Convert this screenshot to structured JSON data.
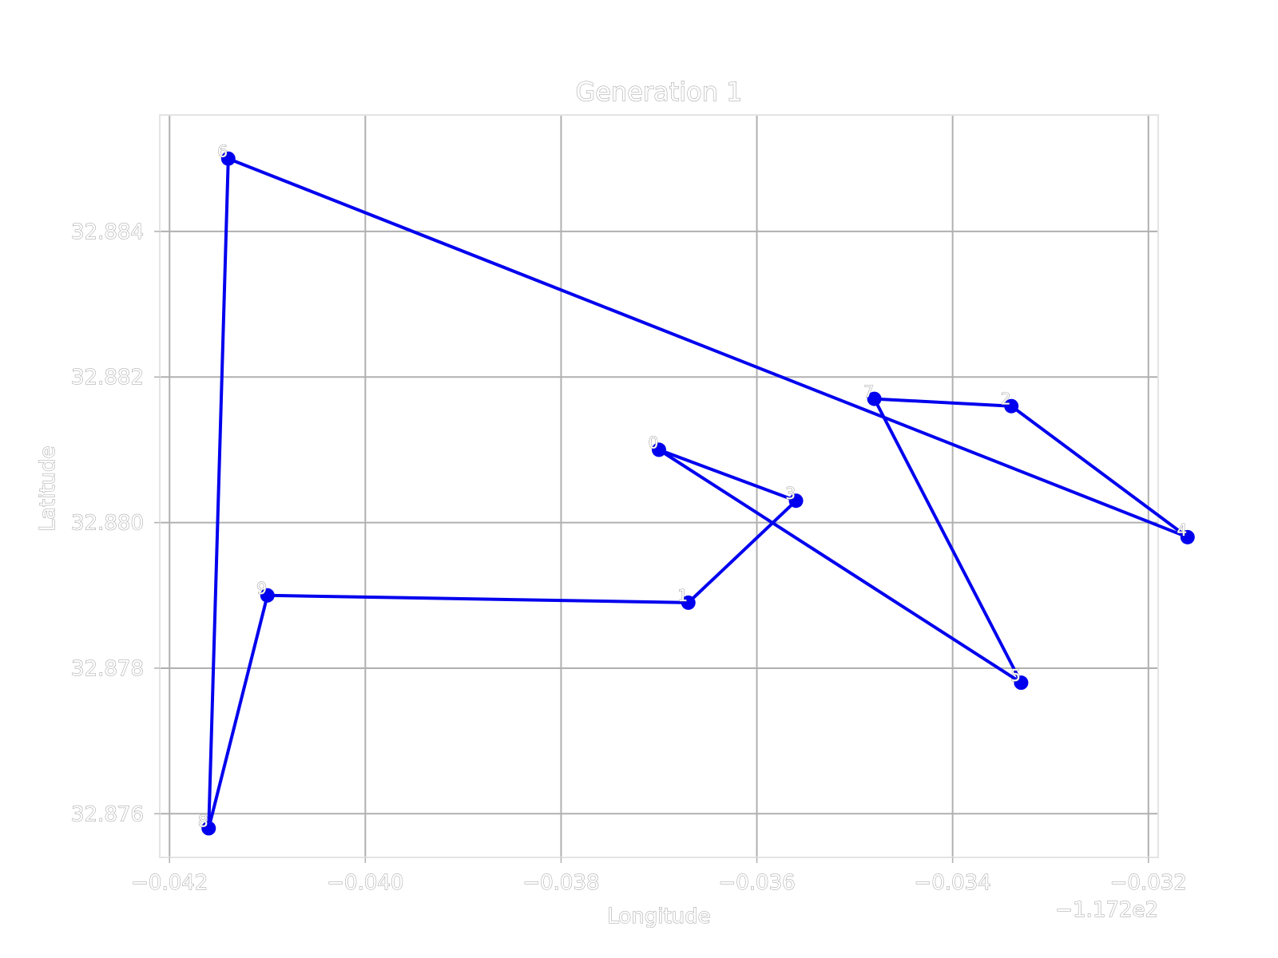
{
  "chart_data": {
    "type": "line",
    "title": "Generation 1",
    "xlabel": "Longitude",
    "ylabel": "Latitude",
    "x_offset_label": "−1.172e2",
    "xlim": [
      -0.0421,
      -0.0319
    ],
    "ylim": [
      32.8754,
      32.8856
    ],
    "xticks": [
      -0.042,
      -0.04,
      -0.038,
      -0.036,
      -0.034,
      -0.032
    ],
    "xtick_labels": [
      "−0.042",
      "−0.040",
      "−0.038",
      "−0.036",
      "−0.034",
      "−0.032"
    ],
    "yticks": [
      32.876,
      32.878,
      32.88,
      32.882,
      32.884
    ],
    "ytick_labels": [
      "32.876",
      "32.878",
      "32.880",
      "32.882",
      "32.884"
    ],
    "grid": true,
    "line_color": "#0000ee",
    "points": [
      {
        "label": "0",
        "x": -0.037,
        "y": 32.881
      },
      {
        "label": "1",
        "x": -0.0367,
        "y": 32.8789
      },
      {
        "label": "2",
        "x": -0.0334,
        "y": 32.8816
      },
      {
        "label": "3",
        "x": -0.0356,
        "y": 32.8803
      },
      {
        "label": "4",
        "x": -0.0316,
        "y": 32.8798
      },
      {
        "label": "5",
        "x": -0.0333,
        "y": 32.8778
      },
      {
        "label": "6",
        "x": -0.0414,
        "y": 32.885
      },
      {
        "label": "7",
        "x": -0.0348,
        "y": 32.8817
      },
      {
        "label": "8",
        "x": -0.0416,
        "y": 32.8758
      },
      {
        "label": "9",
        "x": -0.041,
        "y": 32.879
      }
    ],
    "route": [
      0,
      3,
      1,
      9,
      8,
      6,
      4,
      2,
      7,
      5,
      0
    ]
  }
}
